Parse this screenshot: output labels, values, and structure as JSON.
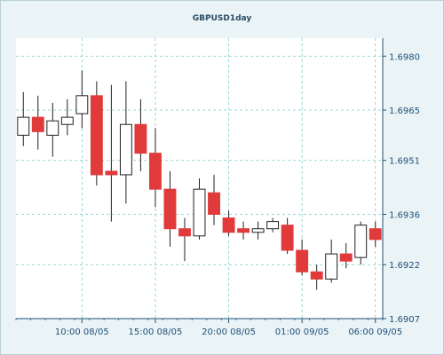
{
  "chart_data": {
    "type": "candlestick",
    "title": "GBPUSD1day",
    "y_range": [
      1.6907,
      1.6985
    ],
    "y_ticks": [
      "1.6907",
      "1.6922",
      "1.6936",
      "1.6951",
      "1.6965",
      "1.6980"
    ],
    "x_ticks": [
      "10:00 08/05",
      "15:00 08/05",
      "20:00 08/05",
      "01:00 09/05",
      "06:00 09/05"
    ],
    "x_tick_index": [
      4.5,
      9.5,
      14.5,
      19.5,
      24.5
    ],
    "grid": true,
    "colors": {
      "up_fill": "#ffffff",
      "down_fill": "#e03a3a",
      "outline": "#222222",
      "grid": "#7cc9c9",
      "axis": "#1f4f7a"
    },
    "candles": [
      {
        "o": 1.6958,
        "h": 1.697,
        "l": 1.6955,
        "c": 1.6963
      },
      {
        "o": 1.6963,
        "h": 1.6969,
        "l": 1.6954,
        "c": 1.6959
      },
      {
        "o": 1.6958,
        "h": 1.6967,
        "l": 1.6952,
        "c": 1.6962
      },
      {
        "o": 1.6961,
        "h": 1.6968,
        "l": 1.6958,
        "c": 1.6963
      },
      {
        "o": 1.6964,
        "h": 1.6976,
        "l": 1.696,
        "c": 1.6969
      },
      {
        "o": 1.6969,
        "h": 1.6973,
        "l": 1.6944,
        "c": 1.6947
      },
      {
        "o": 1.6948,
        "h": 1.6972,
        "l": 1.6934,
        "c": 1.6947
      },
      {
        "o": 1.6947,
        "h": 1.6973,
        "l": 1.6939,
        "c": 1.6961
      },
      {
        "o": 1.6961,
        "h": 1.6968,
        "l": 1.6948,
        "c": 1.6953
      },
      {
        "o": 1.6953,
        "h": 1.696,
        "l": 1.6938,
        "c": 1.6943
      },
      {
        "o": 1.6943,
        "h": 1.6948,
        "l": 1.6927,
        "c": 1.6932
      },
      {
        "o": 1.6932,
        "h": 1.6935,
        "l": 1.6923,
        "c": 1.693
      },
      {
        "o": 1.693,
        "h": 1.6946,
        "l": 1.6929,
        "c": 1.6943
      },
      {
        "o": 1.6942,
        "h": 1.6947,
        "l": 1.6933,
        "c": 1.6936
      },
      {
        "o": 1.6935,
        "h": 1.6937,
        "l": 1.693,
        "c": 1.6931
      },
      {
        "o": 1.6932,
        "h": 1.6934,
        "l": 1.6929,
        "c": 1.6931
      },
      {
        "o": 1.6931,
        "h": 1.6934,
        "l": 1.6929,
        "c": 1.6932
      },
      {
        "o": 1.6932,
        "h": 1.6935,
        "l": 1.6931,
        "c": 1.6934
      },
      {
        "o": 1.6933,
        "h": 1.6935,
        "l": 1.6925,
        "c": 1.6926
      },
      {
        "o": 1.6926,
        "h": 1.6929,
        "l": 1.6919,
        "c": 1.692
      },
      {
        "o": 1.692,
        "h": 1.6922,
        "l": 1.6915,
        "c": 1.6918
      },
      {
        "o": 1.6918,
        "h": 1.6929,
        "l": 1.6917,
        "c": 1.6925
      },
      {
        "o": 1.6925,
        "h": 1.6928,
        "l": 1.6921,
        "c": 1.6923
      },
      {
        "o": 1.6924,
        "h": 1.6934,
        "l": 1.6922,
        "c": 1.6933
      },
      {
        "o": 1.6932,
        "h": 1.6934,
        "l": 1.6927,
        "c": 1.6929
      }
    ]
  }
}
